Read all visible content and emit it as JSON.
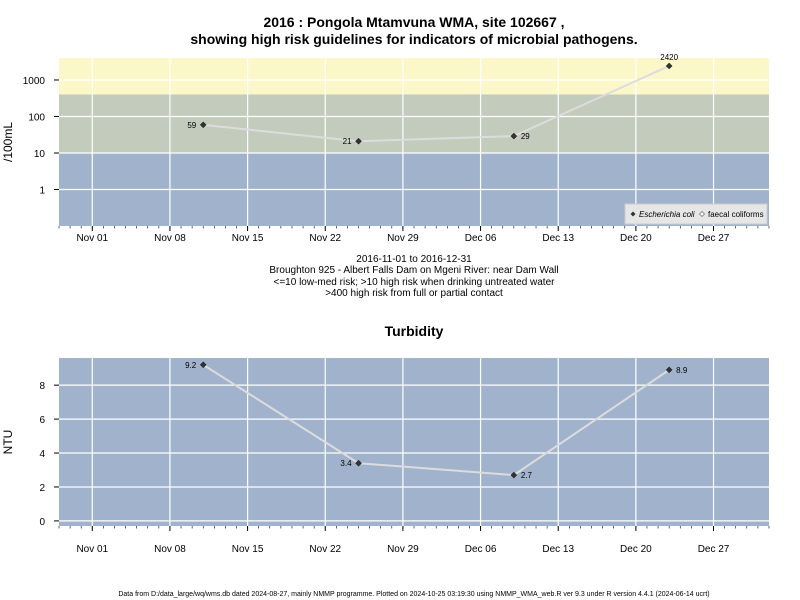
{
  "title_lines": [
    "2016 : Pongola Mtamvuna WMA, site 102667 ,",
    "showing high risk guidelines for indicators of microbial pathogens."
  ],
  "caption_lines": [
    "2016-11-01 to 2016-12-31",
    "Broughton 925 - Albert Falls Dam on Mgeni River: near Dam Wall",
    "<=10 low-med risk; >10 high risk when drinking untreated water",
    ">400 high risk from full or partial contact"
  ],
  "footer": "Data from D:/data_large/wq/wms.db dated 2024-08-27, mainly NMMP programme. Plotted on 2024-10-25 03:19:30 using NMMP_WMA_web.R ver 9.3 under R version 4.4.1 (2024-06-14 ucrt)",
  "colors": {
    "band_low": "#a1b3cc",
    "band_high": "#c3cbbd",
    "band_contact": "#fcf7c9",
    "grid": "#ffffff",
    "line": "#dcdcdc",
    "point": "#333333"
  },
  "chart_data": [
    {
      "type": "line",
      "title": "",
      "ylabel": "/100mL",
      "xlabel": "",
      "scale": "log",
      "x_dates": [
        "2016-11-11",
        "2016-11-25",
        "2016-12-09",
        "2016-12-23"
      ],
      "x_labels": [
        "Nov 01",
        "Nov 08",
        "Nov 15",
        "Nov 22",
        "Nov 29",
        "Dec 06",
        "Dec 13",
        "Dec 20",
        "Dec 27"
      ],
      "xlim": [
        "2016-10-29",
        "2017-01-01"
      ],
      "ylim": [
        0.1,
        4000
      ],
      "y_ticks": [
        "1",
        "10",
        "100",
        "1000"
      ],
      "bands": [
        {
          "from": 0.1,
          "to": 10,
          "color": "#a1b3cc"
        },
        {
          "from": 10,
          "to": 400,
          "color": "#c3cbbd"
        },
        {
          "from": 400,
          "to": 4000,
          "color": "#fcf7c9"
        }
      ],
      "series": [
        {
          "name": "Escherichia coli",
          "values": [
            59,
            21,
            29,
            2420
          ],
          "labels": [
            "59",
            "21",
            "29",
            "2420"
          ]
        }
      ],
      "legend": {
        "position": "bottom-right",
        "entries": [
          "Escherichia coli",
          "faecal coliforms"
        ]
      },
      "grid": true
    },
    {
      "type": "line",
      "title": "Turbidity",
      "ylabel": "NTU",
      "xlabel": "",
      "scale": "linear",
      "x_dates": [
        "2016-11-11",
        "2016-11-25",
        "2016-12-09",
        "2016-12-23"
      ],
      "x_labels": [
        "Nov 01",
        "Nov 08",
        "Nov 15",
        "Nov 22",
        "Nov 29",
        "Dec 06",
        "Dec 13",
        "Dec 20",
        "Dec 27"
      ],
      "xlim": [
        "2016-10-29",
        "2017-01-01"
      ],
      "ylim": [
        -0.3,
        9.6
      ],
      "y_ticks": [
        "0",
        "2",
        "4",
        "6",
        "8"
      ],
      "series": [
        {
          "name": "",
          "values": [
            9.2,
            3.4,
            2.7,
            8.9
          ],
          "labels": [
            "9.2",
            "3.4",
            "2.7",
            "8.9"
          ]
        }
      ],
      "grid": true
    }
  ]
}
